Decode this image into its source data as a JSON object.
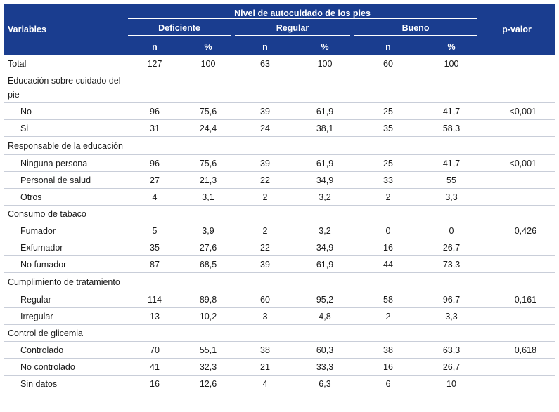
{
  "header": {
    "variables": "Variables",
    "group_title": "Nivel de autocuidado de los pies",
    "pvalue": "p-valor",
    "groups": [
      "Deficiente",
      "Regular",
      "Bueno"
    ],
    "n": "n",
    "pct": "%"
  },
  "rows": [
    {
      "type": "data",
      "label": "Total",
      "indent": false,
      "v": [
        "127",
        "100",
        "63",
        "100",
        "60",
        "100"
      ],
      "p": ""
    },
    {
      "type": "cat",
      "label": "Educación sobre cuidado del pie"
    },
    {
      "type": "data",
      "label": "No",
      "indent": true,
      "v": [
        "96",
        "75,6",
        "39",
        "61,9",
        "25",
        "41,7"
      ],
      "p": "<0,001"
    },
    {
      "type": "data",
      "label": "Si",
      "indent": true,
      "v": [
        "31",
        "24,4",
        "24",
        "38,1",
        "35",
        "58,3"
      ],
      "p": ""
    },
    {
      "type": "cat",
      "label": "Responsable de la educación"
    },
    {
      "type": "data",
      "label": "Ninguna persona",
      "indent": true,
      "v": [
        "96",
        "75,6",
        "39",
        "61,9",
        "25",
        "41,7"
      ],
      "p": "<0,001"
    },
    {
      "type": "data",
      "label": "Personal de salud",
      "indent": true,
      "v": [
        "27",
        "21,3",
        "22",
        "34,9",
        "33",
        "55"
      ],
      "p": ""
    },
    {
      "type": "data",
      "label": "Otros",
      "indent": true,
      "v": [
        "4",
        "3,1",
        "2",
        "3,2",
        "2",
        "3,3"
      ],
      "p": ""
    },
    {
      "type": "data",
      "label": "Consumo de tabaco",
      "indent": false,
      "v": [
        "",
        "",
        "",
        "",
        "",
        ""
      ],
      "p": ""
    },
    {
      "type": "data",
      "label": "Fumador",
      "indent": true,
      "v": [
        "5",
        "3,9",
        "2",
        "3,2",
        "0",
        "0"
      ],
      "p": "0,426"
    },
    {
      "type": "data",
      "label": "Exfumador",
      "indent": true,
      "v": [
        "35",
        "27,6",
        "22",
        "34,9",
        "16",
        "26,7"
      ],
      "p": ""
    },
    {
      "type": "data",
      "label": "No fumador",
      "indent": true,
      "v": [
        "87",
        "68,5",
        "39",
        "61,9",
        "44",
        "73,3"
      ],
      "p": ""
    },
    {
      "type": "cat",
      "label": "Cumplimiento de tratamiento"
    },
    {
      "type": "data",
      "label": "Regular",
      "indent": true,
      "v": [
        "114",
        "89,8",
        "60",
        "95,2",
        "58",
        "96,7"
      ],
      "p": "0,161"
    },
    {
      "type": "data",
      "label": "Irregular",
      "indent": true,
      "v": [
        "13",
        "10,2",
        "3",
        "4,8",
        "2",
        "3,3"
      ],
      "p": ""
    },
    {
      "type": "data",
      "label": "Control de glicemia",
      "indent": false,
      "v": [
        "",
        "",
        "",
        "",
        "",
        ""
      ],
      "p": ""
    },
    {
      "type": "data",
      "label": "Controlado",
      "indent": true,
      "v": [
        "70",
        "55,1",
        "38",
        "60,3",
        "38",
        "63,3"
      ],
      "p": "0,618"
    },
    {
      "type": "data",
      "label": "No controlado",
      "indent": true,
      "v": [
        "41",
        "32,3",
        "21",
        "33,3",
        "16",
        "26,7"
      ],
      "p": ""
    },
    {
      "type": "data",
      "label": "Sin datos",
      "indent": true,
      "v": [
        "16",
        "12,6",
        "4",
        "6,3",
        "6",
        "10"
      ],
      "p": ""
    }
  ]
}
